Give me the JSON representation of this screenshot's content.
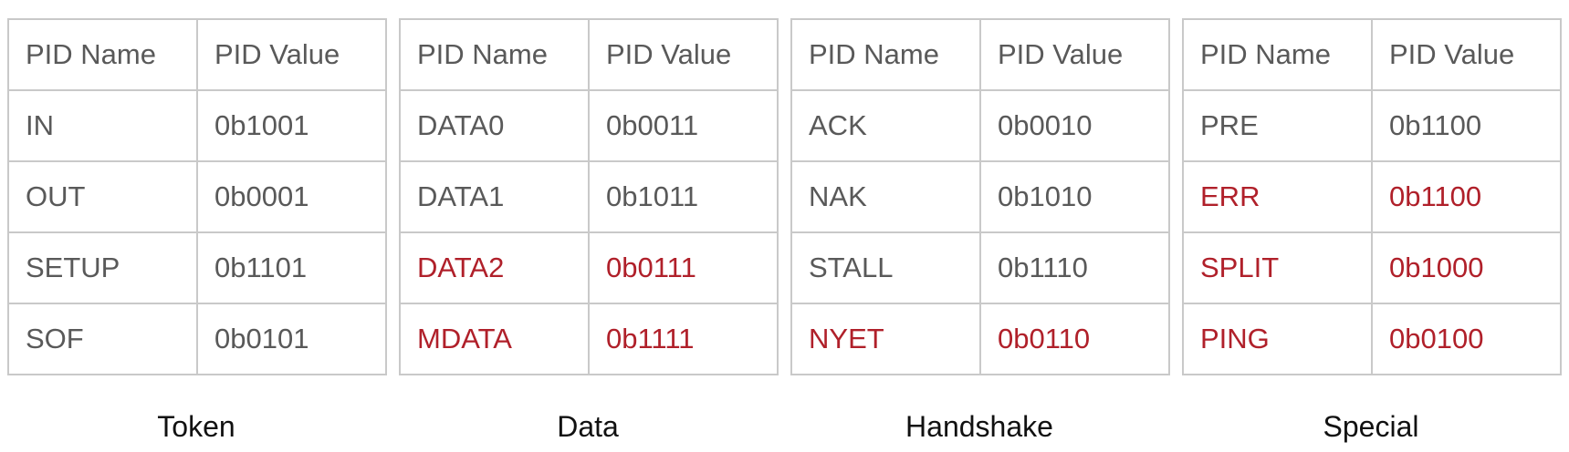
{
  "colors": {
    "text": "#595959",
    "highlight": "#b0202a",
    "border": "#c9c9c9",
    "caption": "#111111"
  },
  "tables": [
    {
      "caption": "Token",
      "headers": [
        "PID Name",
        "PID Value"
      ],
      "rows": [
        {
          "name": "IN",
          "value": "0b1001",
          "highlight": false
        },
        {
          "name": "OUT",
          "value": "0b0001",
          "highlight": false
        },
        {
          "name": "SETUP",
          "value": "0b1101",
          "highlight": false
        },
        {
          "name": "SOF",
          "value": "0b0101",
          "highlight": false
        }
      ]
    },
    {
      "caption": "Data",
      "headers": [
        "PID Name",
        "PID Value"
      ],
      "rows": [
        {
          "name": "DATA0",
          "value": "0b0011",
          "highlight": false
        },
        {
          "name": "DATA1",
          "value": "0b1011",
          "highlight": false
        },
        {
          "name": "DATA2",
          "value": "0b0111",
          "highlight": true
        },
        {
          "name": "MDATA",
          "value": "0b1111",
          "highlight": true
        }
      ]
    },
    {
      "caption": "Handshake",
      "headers": [
        "PID Name",
        "PID Value"
      ],
      "rows": [
        {
          "name": "ACK",
          "value": "0b0010",
          "highlight": false
        },
        {
          "name": "NAK",
          "value": "0b1010",
          "highlight": false
        },
        {
          "name": "STALL",
          "value": "0b1110",
          "highlight": false
        },
        {
          "name": "NYET",
          "value": "0b0110",
          "highlight": true
        }
      ]
    },
    {
      "caption": "Special",
      "headers": [
        "PID Name",
        "PID Value"
      ],
      "rows": [
        {
          "name": "PRE",
          "value": "0b1100",
          "highlight": false
        },
        {
          "name": "ERR",
          "value": "0b1100",
          "highlight": true
        },
        {
          "name": "SPLIT",
          "value": "0b1000",
          "highlight": true
        },
        {
          "name": "PING",
          "value": "0b0100",
          "highlight": true
        }
      ]
    }
  ]
}
